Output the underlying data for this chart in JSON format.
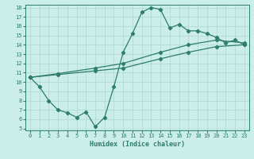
{
  "xlabel": "Humidex (Indice chaleur)",
  "xlim": [
    -0.5,
    23.5
  ],
  "ylim": [
    4.8,
    18.3
  ],
  "xticks": [
    0,
    1,
    2,
    3,
    4,
    5,
    6,
    7,
    8,
    9,
    10,
    11,
    12,
    13,
    14,
    15,
    16,
    17,
    18,
    19,
    20,
    21,
    22,
    23
  ],
  "yticks": [
    5,
    6,
    7,
    8,
    9,
    10,
    11,
    12,
    13,
    14,
    15,
    16,
    17,
    18
  ],
  "line_color": "#2e7d6e",
  "bg_color": "#cceee8",
  "grid_color": "#aad8d0",
  "line1_x": [
    0,
    1,
    2,
    3,
    4,
    5,
    6,
    7,
    8,
    9,
    10,
    11,
    12,
    13,
    14,
    15,
    16,
    17,
    18,
    19,
    20,
    21,
    22,
    23
  ],
  "line1_y": [
    10.5,
    9.5,
    8.0,
    7.0,
    6.7,
    6.2,
    6.8,
    5.2,
    6.2,
    9.5,
    13.2,
    15.2,
    17.5,
    18.0,
    17.8,
    15.8,
    16.2,
    15.5,
    15.5,
    15.2,
    14.8,
    14.2,
    14.5,
    14.0
  ],
  "line2_x": [
    0,
    3,
    7,
    10,
    14,
    17,
    20,
    23
  ],
  "line2_y": [
    10.5,
    10.8,
    11.2,
    11.5,
    12.5,
    13.2,
    13.8,
    14.0
  ],
  "line3_x": [
    0,
    3,
    7,
    10,
    14,
    17,
    20,
    23
  ],
  "line3_y": [
    10.5,
    10.9,
    11.5,
    12.0,
    13.2,
    14.0,
    14.5,
    14.2
  ]
}
